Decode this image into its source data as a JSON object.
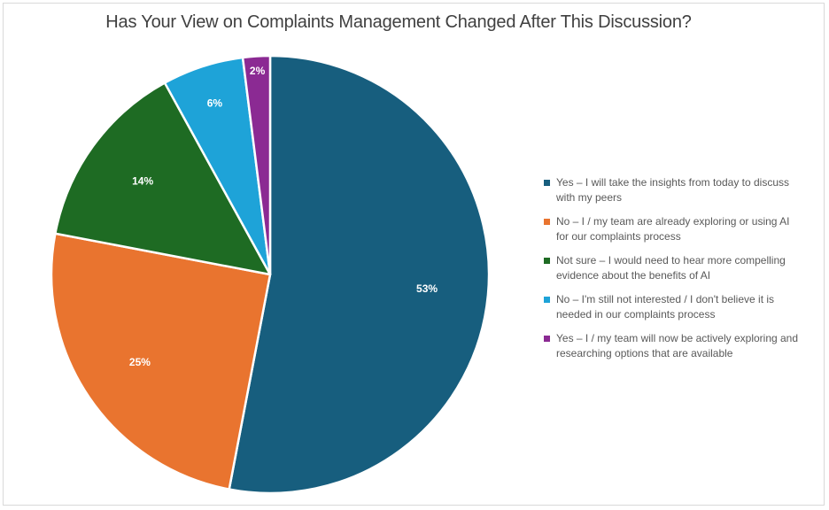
{
  "chart_data": {
    "type": "pie",
    "title": "Has Your View on Complaints Management Changed After This Discussion?",
    "legend_position": "right",
    "slices": [
      {
        "label": "Yes – I will take the insights from today to discuss with my peers",
        "value": 53,
        "data_label": "53%",
        "color": "#175e7e"
      },
      {
        "label": "No – I / my team are already exploring or using AI for our complaints process",
        "value": 25,
        "data_label": "25%",
        "color": "#e9742f"
      },
      {
        "label": "Not sure  – I would need to hear more compelling evidence about the benefits of AI",
        "value": 14,
        "data_label": "14%",
        "color": "#1e6b23"
      },
      {
        "label": "No – I'm still not interested / I don't believe it is needed in our complaints process",
        "value": 6,
        "data_label": "6%",
        "color": "#1ea3d8"
      },
      {
        "label": "Yes – I / my team will now be actively exploring and researching options that are available",
        "value": 2,
        "data_label": "2%",
        "color": "#8b2a93"
      }
    ]
  }
}
